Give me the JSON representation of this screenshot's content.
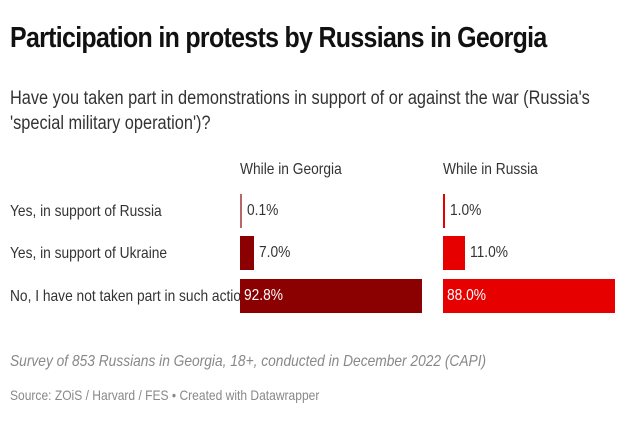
{
  "chart_data": {
    "type": "bar",
    "title": "Participation in protests by Russians in Georgia",
    "subtitle": "Have you taken part in demonstrations in support of or against the war (Russia's 'special military operation')?",
    "categories": [
      "Yes, in support of Russia",
      "Yes, in support of Ukraine",
      "No, I have not taken part in such actions"
    ],
    "series": [
      {
        "name": "While in Georgia",
        "values": [
          0.1,
          7.0,
          92.8
        ],
        "labels": [
          "0.1%",
          "7.0%",
          "92.8%"
        ],
        "color": "#8b0000"
      },
      {
        "name": "While in Russia",
        "values": [
          1.0,
          11.0,
          88.0
        ],
        "labels": [
          "1.0%",
          "11.0%",
          "88.0%"
        ],
        "color": "#e60000"
      }
    ],
    "xlim": [
      0,
      100
    ],
    "notes": "Survey of 853 Russians in Georgia, 18+, conducted in December 2022 (CAPI)",
    "source": "Source: ZOiS / Harvard / FES • Created with Datawrapper"
  }
}
